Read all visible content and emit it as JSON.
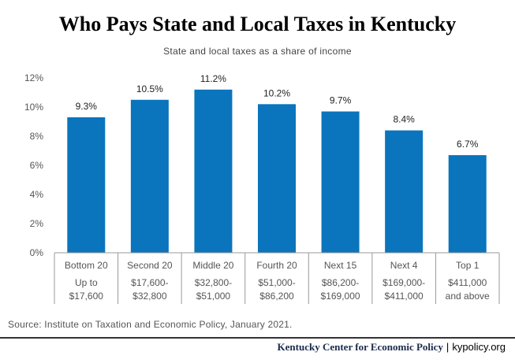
{
  "chart_data": {
    "type": "bar",
    "title": "Who Pays State and Local Taxes in Kentucky",
    "subtitle": "State and local taxes as a share of income",
    "categories": [
      "Bottom 20",
      "Second 20",
      "Middle 20",
      "Fourth 20",
      "Next 15",
      "Next 4",
      "Top 1"
    ],
    "income_ranges": [
      [
        "Up to",
        "$17,600"
      ],
      [
        "$17,600-",
        "$32,800"
      ],
      [
        "$32,800-",
        "$51,000"
      ],
      [
        "$51,000-",
        "$86,200"
      ],
      [
        "$86,200-",
        "$169,000"
      ],
      [
        "$169,000-",
        "$411,000"
      ],
      [
        "$411,000",
        "and above"
      ]
    ],
    "values": [
      9.3,
      10.5,
      11.2,
      10.2,
      9.7,
      8.4,
      6.7
    ],
    "value_labels": [
      "9.3%",
      "10.5%",
      "11.2%",
      "10.2%",
      "9.7%",
      "8.4%",
      "6.7%"
    ],
    "ylim": [
      0,
      12
    ],
    "yticks": [
      0,
      2,
      4,
      6,
      8,
      10,
      12
    ],
    "ytick_labels": [
      "0%",
      "2%",
      "4%",
      "6%",
      "8%",
      "10%",
      "12%"
    ],
    "bar_color": "#0a74bd",
    "grid": false,
    "legend": "none"
  },
  "source": "Source: Institute on Taxation and Economic Policy, January 2021.",
  "footer": {
    "org": "Kentucky Center for Economic Policy",
    "separator": "|",
    "site": "kypolicy.org"
  }
}
